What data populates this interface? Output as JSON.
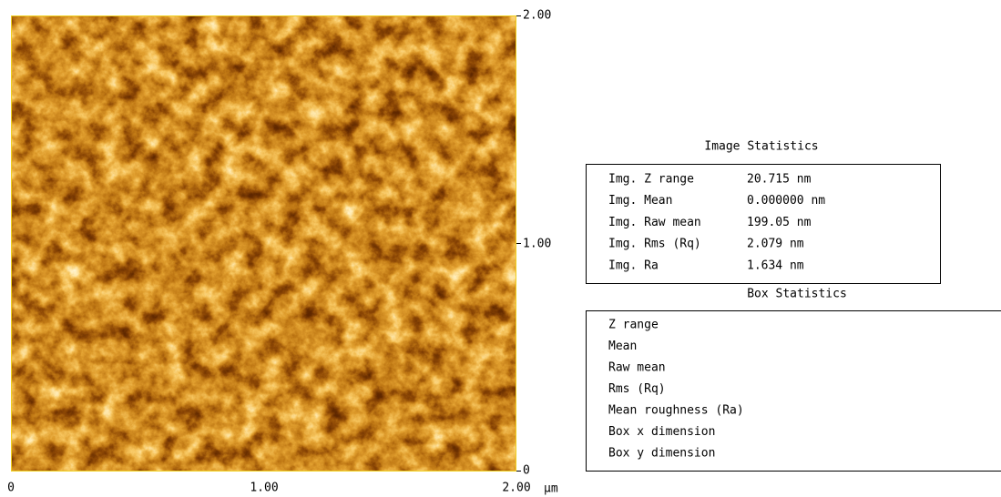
{
  "image": {
    "x_axis_labels": [
      "0",
      "1.00",
      "2.00"
    ],
    "x_unit": "µm",
    "y_axis_labels": [
      "2.00",
      "1.00",
      "0"
    ]
  },
  "image_statistics": {
    "title": "Image Statistics",
    "rows": [
      {
        "label": "Img. Z range",
        "value": "20.715 nm"
      },
      {
        "label": "Img. Mean",
        "value": "0.000000 nm"
      },
      {
        "label": "Img. Raw mean",
        "value": "199.05 nm"
      },
      {
        "label": "Img. Rms (Rq)",
        "value": "2.079 nm"
      },
      {
        "label": "Img. Ra",
        "value": "1.634 nm"
      }
    ]
  },
  "box_statistics": {
    "title": "Box Statistics",
    "rows": [
      "Z range",
      "Mean",
      "Raw mean",
      "Rms (Rq)",
      "Mean roughness (Ra)",
      "Box x dimension",
      "Box y dimension"
    ]
  }
}
